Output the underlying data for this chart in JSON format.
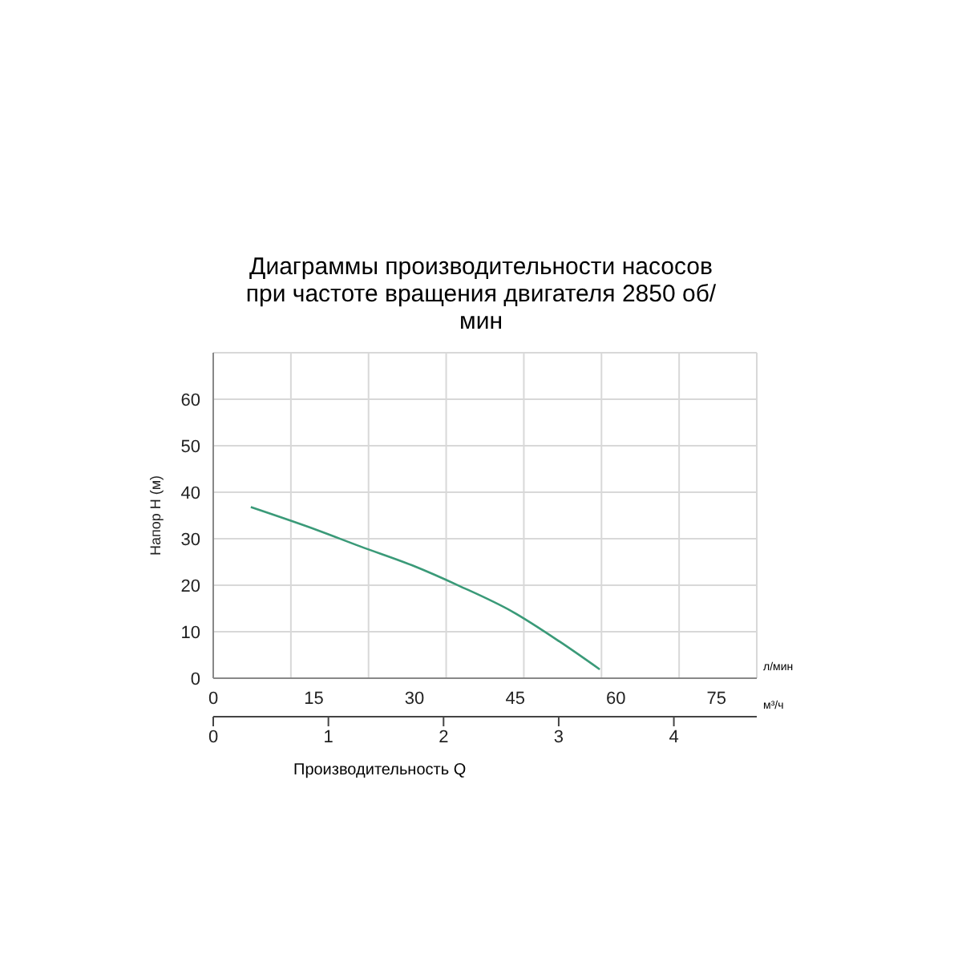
{
  "chart_data": {
    "type": "line",
    "title": "Диаграммы производительности насосов при частоте вращения двигателя 2850 об/мин",
    "xlabel": "Производительность  Q",
    "ylabel": "Напор Н (м)",
    "annotations": [
      "л/мин",
      "м³/ч"
    ],
    "x": [
      5.6,
      15.4,
      22,
      29.6,
      36.6,
      44.6,
      51.6,
      57.6
    ],
    "series": [
      {
        "color": "#3a9a78",
        "values": [
          36.8,
          31.9,
          28.3,
          24.3,
          19.9,
          14.3,
          7.9,
          1.9
        ]
      }
    ],
    "xlim": [
      0,
      81
    ],
    "xticks": [
      0,
      15,
      30,
      45,
      60,
      75
    ],
    "ylim": [
      0,
      70
    ],
    "yticks": [
      0,
      10,
      20,
      30,
      40,
      50,
      60
    ],
    "x2lim": [
      0,
      4.72
    ],
    "x2ticks": [
      0,
      1,
      2,
      3,
      4
    ],
    "grid": true,
    "marker": "none",
    "line_style": "solid"
  }
}
